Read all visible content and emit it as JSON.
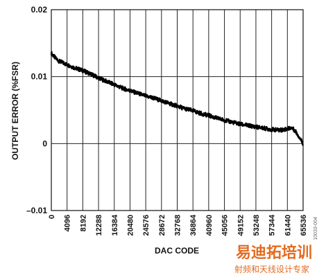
{
  "chart_data": {
    "type": "line",
    "title": "",
    "xlabel": "DAC CODE",
    "ylabel": "OUTPUT ERROR (%FSR)",
    "xlim": [
      0,
      65536
    ],
    "ylim": [
      -0.01,
      0.02
    ],
    "grid": true,
    "x_ticks": [
      0,
      4096,
      8192,
      12288,
      16384,
      20480,
      24576,
      28672,
      32768,
      36864,
      40960,
      45056,
      49152,
      53248,
      57344,
      61440,
      65536
    ],
    "x_tick_labels": [
      "0",
      "4096",
      "8192",
      "12288",
      "16384",
      "20480",
      "24576",
      "28672",
      "32768",
      "36864",
      "40960",
      "45056",
      "49152",
      "53248",
      "57344",
      "61440",
      "65536"
    ],
    "y_ticks": [
      -0.01,
      0,
      0.01,
      0.02
    ],
    "y_tick_labels": [
      "–0.01",
      "0",
      "0.01",
      "0.02"
    ],
    "series": [
      {
        "x": [
          0,
          1000,
          2048,
          4096,
          6144,
          8192,
          10240,
          12288,
          14336,
          16384,
          18432,
          20480,
          22528,
          24576,
          26624,
          28672,
          30720,
          32768,
          34816,
          36864,
          38912,
          40960,
          43008,
          45056,
          47104,
          49152,
          51200,
          53248,
          55296,
          57344,
          59392,
          61440,
          62464,
          63488,
          64512,
          65535
        ],
        "y": [
          0.0135,
          0.0128,
          0.0123,
          0.0118,
          0.0113,
          0.0109,
          0.0104,
          0.0098,
          0.0093,
          0.0088,
          0.0083,
          0.0079,
          0.0075,
          0.0071,
          0.0068,
          0.0064,
          0.006,
          0.0056,
          0.0052,
          0.0049,
          0.0045,
          0.0042,
          0.0038,
          0.0035,
          0.0032,
          0.0029,
          0.0027,
          0.0025,
          0.0023,
          0.0021,
          0.002,
          0.0022,
          0.0024,
          0.0019,
          0.001,
          0.0
        ]
      }
    ]
  },
  "figure_id": "10033-004",
  "watermark": {
    "main": "易迪拓培训",
    "sub": "射频和天线设计专家",
    "color": "#e36b21"
  }
}
